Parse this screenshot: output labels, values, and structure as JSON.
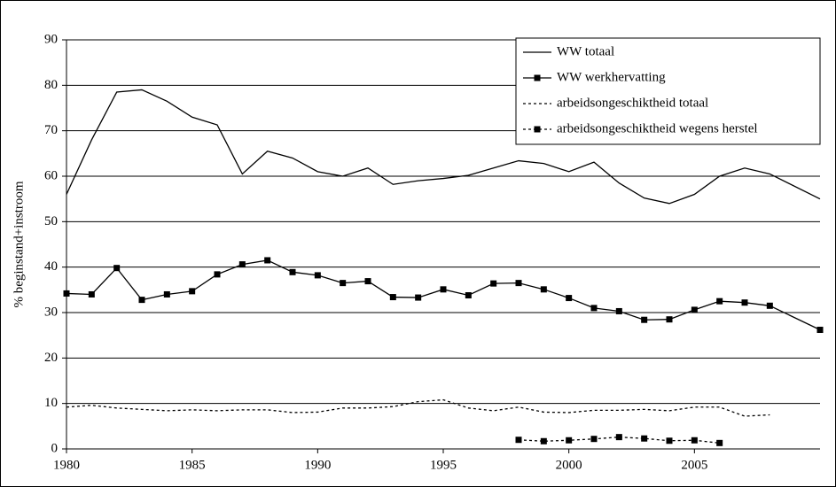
{
  "chart_data": {
    "type": "line",
    "y_label": "% beginstand+instroom",
    "x": [
      1980,
      1981,
      1982,
      1983,
      1984,
      1985,
      1986,
      1987,
      1988,
      1989,
      1990,
      1991,
      1992,
      1993,
      1994,
      1995,
      1996,
      1997,
      1998,
      1999,
      2000,
      2001,
      2002,
      2003,
      2004,
      2005,
      2006,
      2007,
      2008,
      2010
    ],
    "xlim": [
      1980,
      2010
    ],
    "xticks": [
      1980,
      1985,
      1990,
      1995,
      2000,
      2005
    ],
    "ylim": [
      0,
      90
    ],
    "yticks": [
      0,
      10,
      20,
      30,
      40,
      50,
      60,
      70,
      80,
      90
    ],
    "grid": true,
    "legend": "top-right",
    "series": [
      {
        "name": "WW totaal",
        "color": "#000000",
        "style": "solid",
        "marker": "none",
        "values": [
          56,
          68,
          78.5,
          79,
          76.5,
          73,
          71.3,
          60.5,
          65.5,
          64,
          61,
          60,
          61.8,
          58.2,
          59,
          59.5,
          60.2,
          61.8,
          63.4,
          62.8,
          61,
          63.1,
          58.5,
          55.2,
          54,
          56,
          60,
          61.8,
          60.5,
          55
        ]
      },
      {
        "name": "WW werkhervatting",
        "color": "#000000",
        "style": "solid",
        "marker": "square",
        "values": [
          34.2,
          34,
          39.8,
          32.8,
          34,
          34.7,
          38.4,
          40.6,
          41.5,
          38.9,
          38.2,
          36.5,
          36.9,
          33.4,
          33.3,
          35.1,
          33.8,
          36.4,
          36.5,
          35.1,
          33.2,
          31,
          30.3,
          28.4,
          28.5,
          30.6,
          32.5,
          32.2,
          31.5,
          26.2
        ]
      },
      {
        "name": "arbeidsongeschiktheid totaal",
        "color": "#000000",
        "style": "dashed",
        "marker": "none",
        "values": [
          9.2,
          9.6,
          9,
          8.7,
          8.4,
          8.6,
          8.4,
          8.6,
          8.6,
          8,
          8.1,
          9,
          9,
          9.3,
          10.4,
          10.8,
          9,
          8.4,
          9.2,
          8.1,
          8,
          8.5,
          8.5,
          8.7,
          8.4,
          9.2,
          9.2,
          7.2,
          7.5,
          null
        ]
      },
      {
        "name": "arbeidsongeschiktheid wegens herstel",
        "color": "#000000",
        "style": "dashed",
        "marker": "square",
        "values": [
          null,
          null,
          null,
          null,
          null,
          null,
          null,
          null,
          null,
          null,
          null,
          null,
          null,
          null,
          null,
          null,
          null,
          null,
          2,
          1.7,
          1.9,
          2.2,
          2.6,
          2.3,
          1.8,
          1.9,
          1.3,
          null,
          null,
          null
        ]
      }
    ]
  }
}
